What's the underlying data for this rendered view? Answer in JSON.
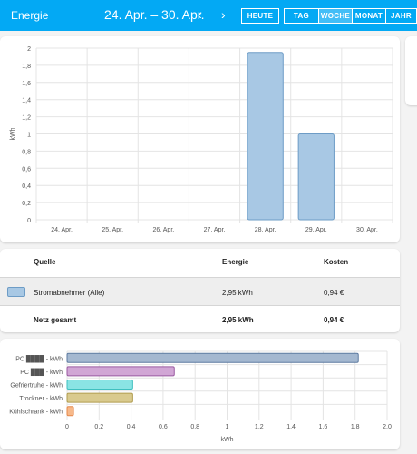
{
  "toolbar": {
    "title": "Energie",
    "date_range": "24. Apr. – 30. Apr.",
    "prev_icon": "chevron-left-icon",
    "next_icon": "chevron-right-icon",
    "prev_glyph": "‹",
    "next_glyph": "›",
    "today_label": "HEUTE",
    "periods": [
      "TAG",
      "WOCHE",
      "MONAT",
      "JAHR"
    ],
    "active_period": "WOCHE",
    "color": "#03a9f4"
  },
  "chart_data": [
    {
      "type": "bar",
      "categories": [
        "24. Apr.",
        "25. Apr.",
        "26. Apr.",
        "27. Apr.",
        "28. Apr.",
        "29. Apr.",
        "30. Apr."
      ],
      "values": [
        0,
        0,
        0,
        0,
        1.95,
        1.0,
        0
      ],
      "ylabel": "kWh",
      "ylim": [
        0,
        2
      ],
      "yticks": [
        "0",
        "0,2",
        "0,4",
        "0,6",
        "0,8",
        "1",
        "1,2",
        "1,4",
        "1,6",
        "1,8",
        "2"
      ],
      "grid": true,
      "color": "#a8c8e4"
    },
    {
      "type": "bar",
      "orientation": "horizontal",
      "categories": [
        "PC ████ - kWh",
        "PC ███ - kWh",
        "Gefriertruhe - kWh",
        "Trockner - kWh",
        "Kühlschrank - kWh"
      ],
      "values": [
        1.82,
        0.67,
        0.41,
        0.41,
        0.04
      ],
      "colors": [
        "#a4b8d0",
        "#d1a6d5",
        "#8ae4e4",
        "#d9ca8e",
        "#f7b98a"
      ],
      "xlabel": "kWh",
      "xlim": [
        0,
        2
      ],
      "xticks": [
        "0",
        "0,2",
        "0,4",
        "0,6",
        "0,8",
        "1",
        "1,2",
        "1,4",
        "1,6",
        "1,8",
        "2,0"
      ],
      "grid": true
    }
  ],
  "table": {
    "headers": {
      "source": "Quelle",
      "energy": "Energie",
      "cost": "Kosten"
    },
    "rows": [
      {
        "source": "Stromabnehmer (Alle)",
        "energy": "2,95 kWh",
        "cost": "0,94 €",
        "color": "#a8c8e4"
      }
    ],
    "total": {
      "label": "Netz gesamt",
      "energy": "2,95 kWh",
      "cost": "0,94 €"
    }
  }
}
